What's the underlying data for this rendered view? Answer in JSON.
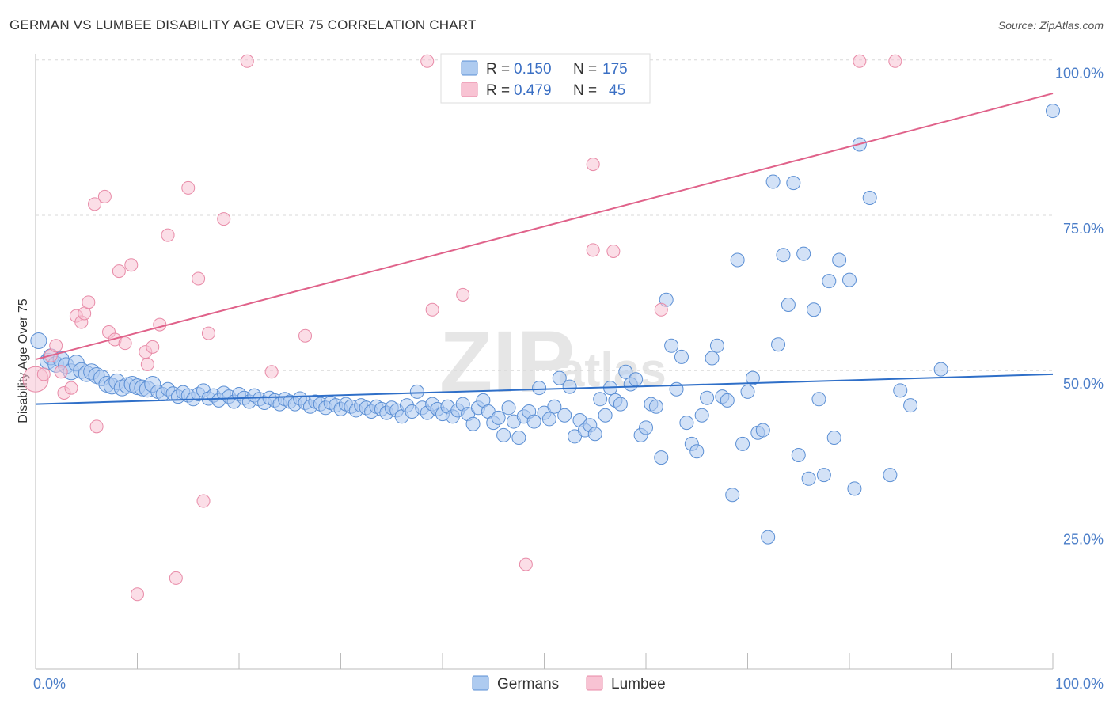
{
  "title": "GERMAN VS LUMBEE DISABILITY AGE OVER 75 CORRELATION CHART",
  "source": "Source: ZipAtlas.com",
  "watermark": "ZIPatlas",
  "legend": {
    "rows": [
      {
        "r_label": "R =",
        "r_value": "0.150",
        "n_label": "N =",
        "n_value": "175"
      },
      {
        "r_label": "R =",
        "r_value": "0.479",
        "n_label": "N =",
        "n_value": "45"
      }
    ]
  },
  "colors": {
    "germans_fill": "#aecbf0",
    "germans_stroke": "#5b8fd4",
    "germans_line": "#2f6fc8",
    "lumbee_fill": "#f8c3d3",
    "lumbee_stroke": "#e88aa7",
    "lumbee_line": "#e0628a",
    "axis_label": "#4a7dc8"
  },
  "chart_data": {
    "type": "scatter",
    "title": "GERMAN VS LUMBEE DISABILITY AGE OVER 75 CORRELATION CHART",
    "xlabel": "",
    "ylabel": "Disability Age Over 75",
    "xlim": [
      0,
      100
    ],
    "ylim": [
      2,
      102
    ],
    "x_tick_labels": [
      "0.0%",
      "100.0%"
    ],
    "y_ticks": [
      25,
      50,
      75,
      100
    ],
    "y_tick_labels": [
      "25.0%",
      "50.0%",
      "75.0%",
      "100.0%"
    ],
    "grid": true,
    "legend_position": "bottom",
    "series": [
      {
        "name": "Germans",
        "r": 0.15,
        "n": 175,
        "trend": {
          "x": [
            0,
            100
          ],
          "y": [
            44.6,
            49.4
          ]
        },
        "points": [
          [
            0.3,
            54.8
          ],
          [
            1.2,
            51.5
          ],
          [
            1.5,
            52.2
          ],
          [
            2.0,
            51.0
          ],
          [
            2.5,
            51.8
          ],
          [
            3.0,
            50.8
          ],
          [
            3.5,
            49.8
          ],
          [
            4.0,
            51.2
          ],
          [
            4.5,
            50.0
          ],
          [
            5.0,
            49.5
          ],
          [
            5.5,
            49.8
          ],
          [
            6.0,
            49.2
          ],
          [
            6.5,
            48.8
          ],
          [
            7.0,
            47.8
          ],
          [
            7.5,
            47.5
          ],
          [
            8.0,
            48.2
          ],
          [
            8.5,
            47.2
          ],
          [
            9.0,
            47.6
          ],
          [
            9.5,
            47.8
          ],
          [
            10.0,
            47.4
          ],
          [
            10.5,
            47.2
          ],
          [
            11.0,
            47.0
          ],
          [
            11.5,
            47.8
          ],
          [
            12.0,
            46.6
          ],
          [
            12.5,
            46.2
          ],
          [
            13.0,
            47.0
          ],
          [
            13.5,
            46.3
          ],
          [
            14.0,
            45.8
          ],
          [
            14.5,
            46.5
          ],
          [
            15.0,
            46.0
          ],
          [
            15.5,
            45.4
          ],
          [
            16.0,
            46.2
          ],
          [
            16.5,
            46.8
          ],
          [
            17.0,
            45.5
          ],
          [
            17.5,
            46.0
          ],
          [
            18.0,
            45.2
          ],
          [
            18.5,
            46.4
          ],
          [
            19.0,
            45.8
          ],
          [
            19.5,
            45.0
          ],
          [
            20.0,
            46.2
          ],
          [
            20.5,
            45.6
          ],
          [
            21.0,
            45.0
          ],
          [
            21.5,
            46.0
          ],
          [
            22.0,
            45.4
          ],
          [
            22.5,
            44.8
          ],
          [
            23.0,
            45.6
          ],
          [
            23.5,
            45.2
          ],
          [
            24.0,
            44.6
          ],
          [
            24.5,
            45.4
          ],
          [
            25.0,
            45.0
          ],
          [
            25.5,
            44.6
          ],
          [
            26.0,
            45.5
          ],
          [
            26.5,
            44.8
          ],
          [
            27.0,
            44.2
          ],
          [
            27.5,
            45.0
          ],
          [
            28.0,
            44.6
          ],
          [
            28.5,
            44.0
          ],
          [
            29.0,
            44.8
          ],
          [
            29.5,
            44.4
          ],
          [
            30.0,
            43.8
          ],
          [
            30.5,
            44.6
          ],
          [
            31.0,
            44.2
          ],
          [
            31.5,
            43.6
          ],
          [
            32.0,
            44.4
          ],
          [
            32.5,
            44.0
          ],
          [
            33.0,
            43.4
          ],
          [
            33.5,
            44.2
          ],
          [
            34.0,
            43.8
          ],
          [
            34.5,
            43.2
          ],
          [
            35.0,
            44.0
          ],
          [
            35.5,
            43.6
          ],
          [
            36.0,
            42.6
          ],
          [
            36.5,
            44.4
          ],
          [
            37.0,
            43.4
          ],
          [
            37.5,
            46.6
          ],
          [
            38.0,
            44.0
          ],
          [
            38.5,
            43.2
          ],
          [
            39.0,
            44.6
          ],
          [
            39.5,
            43.8
          ],
          [
            40.0,
            43.0
          ],
          [
            40.5,
            44.2
          ],
          [
            41.0,
            42.6
          ],
          [
            41.5,
            43.6
          ],
          [
            42.0,
            44.6
          ],
          [
            42.5,
            43.0
          ],
          [
            43.0,
            41.4
          ],
          [
            43.5,
            44.0
          ],
          [
            44.0,
            45.2
          ],
          [
            44.5,
            43.4
          ],
          [
            45.0,
            41.6
          ],
          [
            45.5,
            42.4
          ],
          [
            46.0,
            39.6
          ],
          [
            46.5,
            44.0
          ],
          [
            47.0,
            41.8
          ],
          [
            47.5,
            39.2
          ],
          [
            48.0,
            42.6
          ],
          [
            48.5,
            43.4
          ],
          [
            49.0,
            41.8
          ],
          [
            49.5,
            47.2
          ],
          [
            50.0,
            43.2
          ],
          [
            50.5,
            42.2
          ],
          [
            51.0,
            44.2
          ],
          [
            51.5,
            48.8
          ],
          [
            52.0,
            42.8
          ],
          [
            52.5,
            47.4
          ],
          [
            53.0,
            39.4
          ],
          [
            53.5,
            42.0
          ],
          [
            54.0,
            40.4
          ],
          [
            54.5,
            41.2
          ],
          [
            55.0,
            39.8
          ],
          [
            55.5,
            45.4
          ],
          [
            56.0,
            42.8
          ],
          [
            56.5,
            47.2
          ],
          [
            57.0,
            45.2
          ],
          [
            57.5,
            44.6
          ],
          [
            58.0,
            49.8
          ],
          [
            58.5,
            47.8
          ],
          [
            59.0,
            48.6
          ],
          [
            59.5,
            39.6
          ],
          [
            60.0,
            40.8
          ],
          [
            60.5,
            44.6
          ],
          [
            61.0,
            44.2
          ],
          [
            61.5,
            36.0
          ],
          [
            62.0,
            61.4
          ],
          [
            62.5,
            54.0
          ],
          [
            63.0,
            47.0
          ],
          [
            63.5,
            52.2
          ],
          [
            64.0,
            41.6
          ],
          [
            64.5,
            38.2
          ],
          [
            65.0,
            37.0
          ],
          [
            65.5,
            42.8
          ],
          [
            66.0,
            45.6
          ],
          [
            66.5,
            52.0
          ],
          [
            67.0,
            54.0
          ],
          [
            67.5,
            45.8
          ],
          [
            68.0,
            45.2
          ],
          [
            68.5,
            30.0
          ],
          [
            69.0,
            67.8
          ],
          [
            69.5,
            38.2
          ],
          [
            70.0,
            46.6
          ],
          [
            70.5,
            48.8
          ],
          [
            71.0,
            40.0
          ],
          [
            71.5,
            40.4
          ],
          [
            72.0,
            23.2
          ],
          [
            72.5,
            80.4
          ],
          [
            73.0,
            54.2
          ],
          [
            73.5,
            68.6
          ],
          [
            74.0,
            60.6
          ],
          [
            74.5,
            80.2
          ],
          [
            75.0,
            36.4
          ],
          [
            75.5,
            68.8
          ],
          [
            76.0,
            32.6
          ],
          [
            76.5,
            59.8
          ],
          [
            77.0,
            45.4
          ],
          [
            77.5,
            33.2
          ],
          [
            78.0,
            64.4
          ],
          [
            78.5,
            39.2
          ],
          [
            79.0,
            67.8
          ],
          [
            80.0,
            64.6
          ],
          [
            80.5,
            31.0
          ],
          [
            81.0,
            86.4
          ],
          [
            82.0,
            77.8
          ],
          [
            84.0,
            33.2
          ],
          [
            85.0,
            46.8
          ],
          [
            86.0,
            44.4
          ],
          [
            89.0,
            50.2
          ],
          [
            100.0,
            91.8
          ]
        ]
      },
      {
        "name": "Lumbee",
        "r": 0.479,
        "n": 45,
        "trend": {
          "x": [
            0,
            100
          ],
          "y": [
            51.8,
            94.6
          ]
        },
        "points": [
          [
            0.0,
            48.6
          ],
          [
            0.8,
            49.4
          ],
          [
            1.5,
            52.4
          ],
          [
            2.0,
            54.0
          ],
          [
            2.5,
            49.8
          ],
          [
            2.8,
            46.4
          ],
          [
            3.5,
            47.2
          ],
          [
            4.0,
            58.8
          ],
          [
            4.5,
            57.8
          ],
          [
            4.8,
            59.2
          ],
          [
            5.2,
            61.0
          ],
          [
            5.8,
            76.8
          ],
          [
            6.0,
            41.0
          ],
          [
            6.8,
            78.0
          ],
          [
            7.2,
            56.2
          ],
          [
            7.8,
            55.0
          ],
          [
            8.2,
            66.0
          ],
          [
            8.8,
            54.4
          ],
          [
            9.4,
            67.0
          ],
          [
            10.0,
            14.0
          ],
          [
            10.8,
            53.0
          ],
          [
            11.0,
            51.0
          ],
          [
            11.5,
            53.8
          ],
          [
            12.2,
            57.4
          ],
          [
            13.0,
            71.8
          ],
          [
            13.8,
            16.6
          ],
          [
            15.0,
            79.4
          ],
          [
            16.0,
            64.8
          ],
          [
            16.5,
            29.0
          ],
          [
            17.0,
            56.0
          ],
          [
            18.5,
            74.4
          ],
          [
            20.8,
            99.8
          ],
          [
            23.2,
            49.8
          ],
          [
            26.5,
            55.6
          ],
          [
            38.5,
            99.8
          ],
          [
            39.0,
            59.8
          ],
          [
            42.0,
            62.2
          ],
          [
            48.2,
            18.8
          ],
          [
            54.8,
            83.2
          ],
          [
            54.8,
            69.4
          ],
          [
            56.8,
            69.2
          ],
          [
            59.4,
            99.8
          ],
          [
            61.5,
            59.8
          ],
          [
            81.0,
            99.8
          ],
          [
            84.5,
            99.8
          ]
        ]
      }
    ]
  },
  "bottom_legend": {
    "germans": "Germans",
    "lumbee": "Lumbee"
  }
}
